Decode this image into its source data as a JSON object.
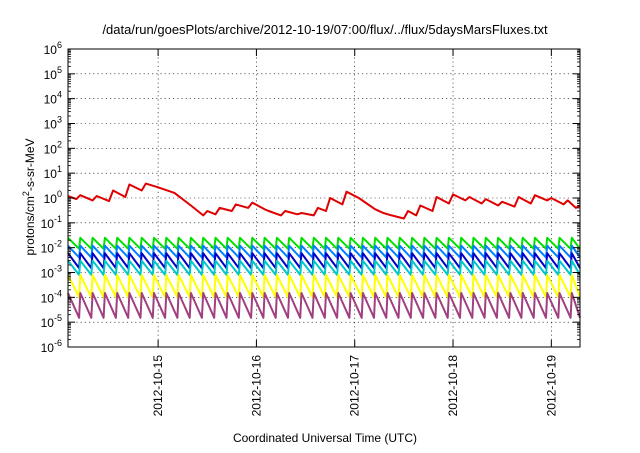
{
  "chart_data": {
    "type": "line",
    "title": "/data/run/goesPlots/archive/2012-10-19/07:00/flux/../flux/5daysMarsFluxes.txt",
    "xlabel": "Coordinated Universal Time (UTC)",
    "ylabel_main": "protons/cm",
    "ylabel_sup": "2",
    "ylabel_rest": "-s-sr-MeV",
    "log_y": true,
    "grid": true,
    "ylim_exp": [
      -6,
      6
    ],
    "y_ticks": [
      {
        "exp": -6,
        "base": "10",
        "sup": "-6"
      },
      {
        "exp": -5,
        "base": "10",
        "sup": "-5"
      },
      {
        "exp": -4,
        "base": "10",
        "sup": "-4"
      },
      {
        "exp": -3,
        "base": "10",
        "sup": "-3"
      },
      {
        "exp": -2,
        "base": "10",
        "sup": "-2"
      },
      {
        "exp": -1,
        "base": "10",
        "sup": "-1"
      },
      {
        "exp": 0,
        "base": "10",
        "sup": "0"
      },
      {
        "exp": 1,
        "base": "10",
        "sup": "1"
      },
      {
        "exp": 2,
        "base": "10",
        "sup": "2"
      },
      {
        "exp": 3,
        "base": "10",
        "sup": "3"
      },
      {
        "exp": 4,
        "base": "10",
        "sup": "4"
      },
      {
        "exp": 5,
        "base": "10",
        "sup": "5"
      },
      {
        "exp": 6,
        "base": "10",
        "sup": "6"
      }
    ],
    "x_range": [
      "2012-10-14 02:00",
      "2012-10-19 07:00"
    ],
    "x_ticks": [
      "2012-10-15",
      "2012-10-16",
      "2012-10-17",
      "2012-10-18",
      "2012-10-19"
    ],
    "series": [
      {
        "color": "#e00000",
        "points": [
          [
            "2012-10-14 02:00",
            1.2
          ],
          [
            "2012-10-14 04:00",
            0.9
          ],
          [
            "2012-10-14 05:00",
            1.3
          ],
          [
            "2012-10-14 08:00",
            0.8
          ],
          [
            "2012-10-14 09:00",
            1.2
          ],
          [
            "2012-10-14 12:00",
            0.75
          ],
          [
            "2012-10-14 13:00",
            2.0
          ],
          [
            "2012-10-14 16:00",
            1.1
          ],
          [
            "2012-10-14 17:00",
            3.5
          ],
          [
            "2012-10-14 20:00",
            2.0
          ],
          [
            "2012-10-14 21:00",
            3.8
          ],
          [
            "2012-10-15 00:00",
            2.7
          ],
          [
            "2012-10-15 04:00",
            1.6
          ],
          [
            "2012-10-15 08:00",
            0.5
          ],
          [
            "2012-10-15 11:00",
            0.2
          ],
          [
            "2012-10-15 12:00",
            0.3
          ],
          [
            "2012-10-15 14:00",
            0.22
          ],
          [
            "2012-10-15 15:00",
            0.4
          ],
          [
            "2012-10-15 18:00",
            0.3
          ],
          [
            "2012-10-15 19:00",
            0.55
          ],
          [
            "2012-10-15 22:00",
            0.4
          ],
          [
            "2012-10-15 23:00",
            0.65
          ],
          [
            "2012-10-16 02:00",
            0.35
          ],
          [
            "2012-10-16 03:00",
            0.3
          ],
          [
            "2012-10-16 06:00",
            0.2
          ],
          [
            "2012-10-16 07:00",
            0.3
          ],
          [
            "2012-10-16 10:00",
            0.22
          ],
          [
            "2012-10-16 11:00",
            0.25
          ],
          [
            "2012-10-16 14:00",
            0.2
          ],
          [
            "2012-10-16 15:00",
            0.4
          ],
          [
            "2012-10-16 17:00",
            0.3
          ],
          [
            "2012-10-16 18:00",
            1.0
          ],
          [
            "2012-10-16 21:00",
            0.55
          ],
          [
            "2012-10-16 22:00",
            1.8
          ],
          [
            "2012-10-17 01:00",
            1.0
          ],
          [
            "2012-10-17 05:00",
            0.35
          ],
          [
            "2012-10-17 07:00",
            0.25
          ],
          [
            "2012-10-17 09:00",
            0.2
          ],
          [
            "2012-10-17 12:00",
            0.15
          ],
          [
            "2012-10-17 13:00",
            0.3
          ],
          [
            "2012-10-17 15:00",
            0.2
          ],
          [
            "2012-10-17 16:00",
            0.5
          ],
          [
            "2012-10-17 19:00",
            0.3
          ],
          [
            "2012-10-17 20:00",
            1.1
          ],
          [
            "2012-10-17 23:00",
            0.6
          ],
          [
            "2012-10-18 00:00",
            1.4
          ],
          [
            "2012-10-18 03:00",
            0.8
          ],
          [
            "2012-10-18 04:00",
            1.1
          ],
          [
            "2012-10-18 07:00",
            0.6
          ],
          [
            "2012-10-18 08:00",
            0.9
          ],
          [
            "2012-10-18 11:00",
            0.5
          ],
          [
            "2012-10-18 12:00",
            0.7
          ],
          [
            "2012-10-18 15:00",
            0.45
          ],
          [
            "2012-10-18 16:00",
            1.1
          ],
          [
            "2012-10-18 19:00",
            0.6
          ],
          [
            "2012-10-18 20:00",
            1.3
          ],
          [
            "2012-10-18 23:00",
            0.8
          ],
          [
            "2012-10-19 00:00",
            1.0
          ],
          [
            "2012-10-19 03:00",
            0.55
          ],
          [
            "2012-10-19 04:00",
            0.8
          ],
          [
            "2012-10-19 06:00",
            0.4
          ],
          [
            "2012-10-19 07:00",
            0.5
          ]
        ]
      },
      {
        "color": "#00e000",
        "sawtooth": {
          "high": 0.025,
          "low": 0.009
        }
      },
      {
        "color": "#0080ff",
        "sawtooth": {
          "high": 0.012,
          "low": 0.004
        }
      },
      {
        "color": "#0000c8",
        "sawtooth": {
          "high": 0.006,
          "low": 0.0015
        }
      },
      {
        "color": "#00c8c8",
        "sawtooth": {
          "high": 0.003,
          "low": 0.0008
        }
      },
      {
        "color": "#ffff00",
        "sawtooth": {
          "high": 0.0008,
          "low": 0.0001
        }
      },
      {
        "color": "#a04080",
        "sawtooth": {
          "high": 0.00015,
          "low": 1.5e-05
        }
      }
    ]
  }
}
